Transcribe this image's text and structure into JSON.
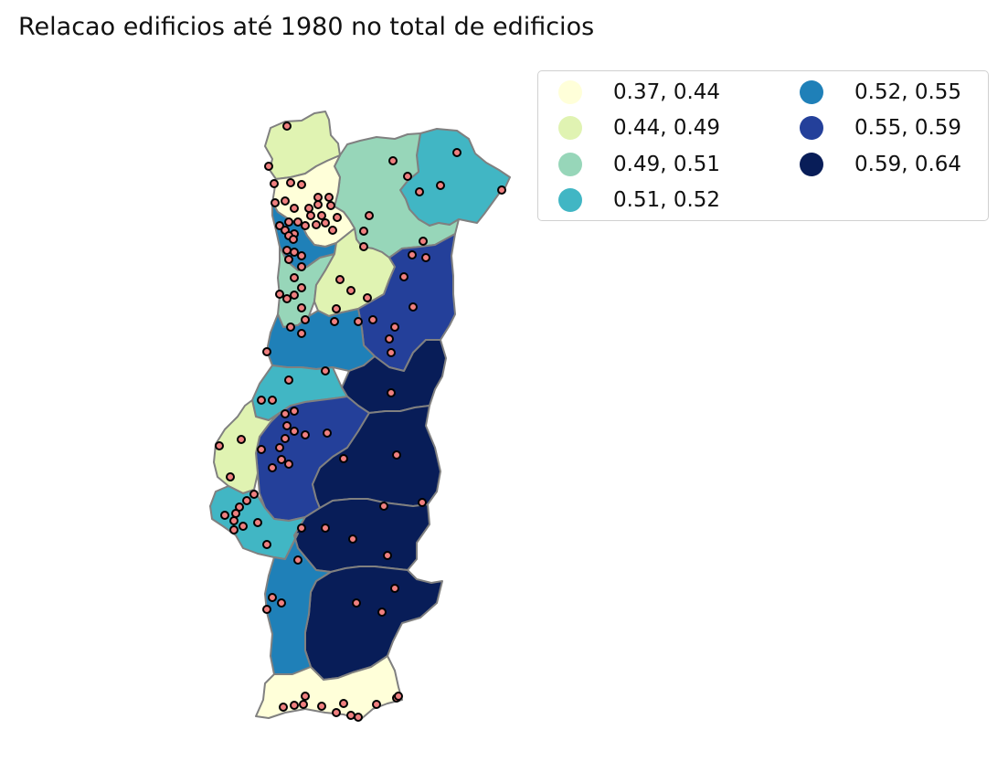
{
  "title": "Relacao edificios até 1980 no total de edificios",
  "legend": {
    "items": [
      {
        "label": "0.37, 0.44",
        "color": "#ffffd9"
      },
      {
        "label": "0.44, 0.49",
        "color": "#e0f3b2"
      },
      {
        "label": "0.49, 0.51",
        "color": "#97d6b9"
      },
      {
        "label": "0.51, 0.52",
        "color": "#41b6c4"
      },
      {
        "label": "0.52, 0.55",
        "color": "#1f80b8"
      },
      {
        "label": "0.55, 0.59",
        "color": "#24409a"
      },
      {
        "label": "0.59, 0.64",
        "color": "#081d58"
      }
    ]
  },
  "colors": {
    "border": "#808080",
    "marker_fill": "#f08080",
    "marker_edge": "#000000"
  }
}
